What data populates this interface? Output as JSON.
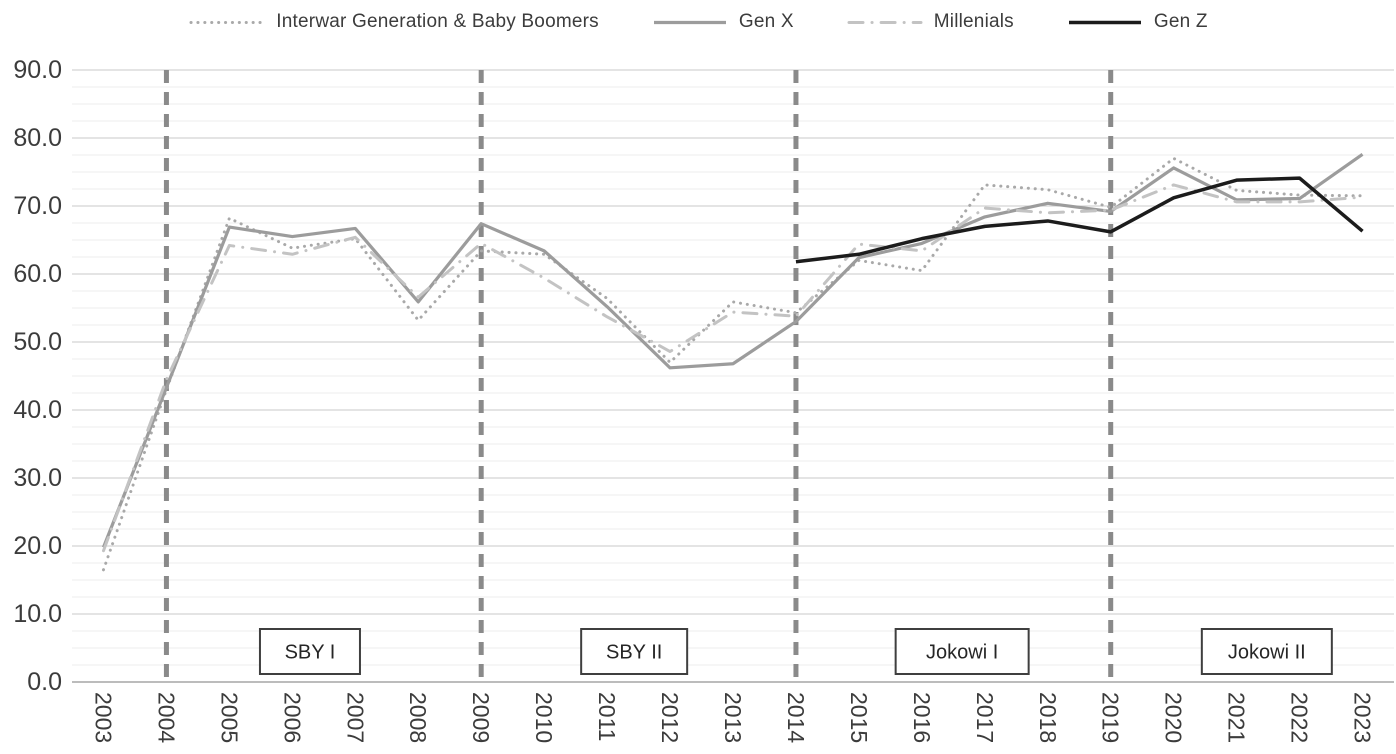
{
  "chart_data": {
    "type": "line",
    "title": "",
    "categories": [
      "2003",
      "2004",
      "2005",
      "2006",
      "2007",
      "2008",
      "2009",
      "2010",
      "2011",
      "2012",
      "2013",
      "2014",
      "2015",
      "2016",
      "2017",
      "2018",
      "2019",
      "2020",
      "2021",
      "2022",
      "2023"
    ],
    "series": [
      {
        "name": "Interwar Generation & Baby Boomers",
        "color": "#a9a9a9",
        "dash": "dotted",
        "width": 3,
        "values": [
          16.5,
          43.0,
          68.2,
          63.8,
          65.2,
          53.2,
          63.4,
          62.9,
          56.4,
          47.0,
          55.9,
          54.3,
          62.0,
          60.5,
          73.1,
          72.4,
          69.8,
          77.0,
          72.3,
          71.6,
          71.5
        ]
      },
      {
        "name": "Gen X",
        "color": "#9c9c9c",
        "dash": "solid",
        "width": 3.2,
        "values": [
          19.8,
          43.3,
          66.9,
          65.5,
          66.7,
          55.9,
          67.4,
          63.4,
          55.2,
          46.2,
          46.8,
          53.0,
          62.4,
          64.5,
          68.4,
          70.4,
          69.2,
          75.6,
          70.9,
          71.1,
          77.6
        ]
      },
      {
        "name": "Millenials",
        "color": "#c3c3c3",
        "dash": "dashdot",
        "width": 3,
        "values": [
          19.3,
          44.5,
          64.2,
          62.9,
          65.4,
          56.6,
          64.5,
          59.4,
          53.7,
          48.6,
          54.4,
          53.8,
          64.4,
          63.4,
          69.7,
          69.0,
          69.4,
          73.1,
          70.6,
          70.6,
          71.3
        ]
      },
      {
        "name": "Gen Z",
        "color": "#1c1c1c",
        "dash": "solid",
        "width": 3.5,
        "values": [
          null,
          null,
          null,
          null,
          null,
          null,
          null,
          null,
          null,
          null,
          null,
          61.8,
          62.9,
          65.2,
          67.0,
          67.8,
          66.2,
          71.2,
          73.8,
          74.1,
          66.3
        ]
      }
    ],
    "ylim": [
      0,
      90
    ],
    "y_major_step": 10,
    "y_minor_step": 2.5,
    "y_tick_labels": [
      "90.0",
      "80.0",
      "70.0",
      "60.0",
      "50.0",
      "40.0",
      "30.0",
      "20.0",
      "10.0",
      "0.0"
    ],
    "grid": true,
    "legend_position": "top",
    "era_lines": {
      "years": [
        "2004",
        "2009",
        "2014",
        "2019"
      ],
      "color": "#8a8a8a"
    },
    "term_boxes": [
      {
        "label": "SBY I",
        "x_index": 3.28,
        "width": 100
      },
      {
        "label": "SBY II",
        "x_index": 8.43,
        "width": 106
      },
      {
        "label": "Jokowi I",
        "x_index": 13.64,
        "width": 133
      },
      {
        "label": "Jokowi II",
        "x_index": 18.48,
        "width": 130
      }
    ],
    "colors": {
      "grid_major": "#c9c9c9",
      "grid_minor": "#ededed",
      "axis_line": "#a6a6a6",
      "tick_text": "#3c3c3c",
      "box_border": "#3f3f3f",
      "box_text": "#262626"
    }
  }
}
